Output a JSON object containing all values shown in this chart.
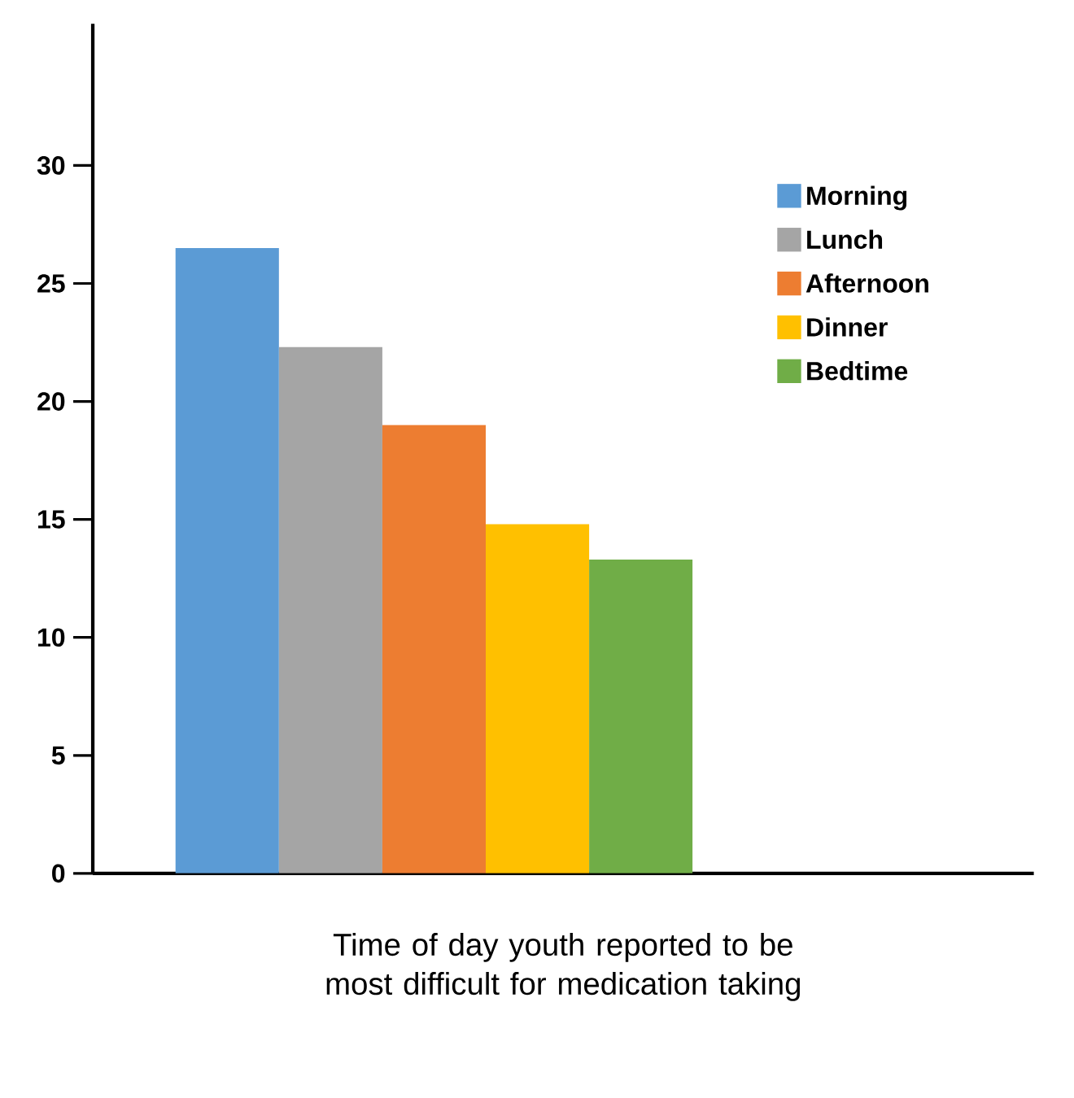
{
  "chart_data": {
    "type": "bar",
    "xlabel": "Time of day youth reported to be most difficult for medication taking",
    "categories": [
      null
    ],
    "series": [
      {
        "name": "Morning",
        "color": "#5b9bd5",
        "values": [
          26.5
        ]
      },
      {
        "name": "Lunch",
        "color": "#a5a5a5",
        "values": [
          22.3
        ]
      },
      {
        "name": "Afternoon",
        "color": "#ed7d31",
        "values": [
          19.0
        ]
      },
      {
        "name": "Dinner",
        "color": "#ffc000",
        "values": [
          14.8
        ]
      },
      {
        "name": "Bedtime",
        "color": "#70ad47",
        "values": [
          13.3
        ]
      }
    ],
    "ylim": [
      0,
      36
    ],
    "yticks": [
      0,
      5,
      10,
      15,
      20,
      25,
      30
    ],
    "legend": "right"
  }
}
